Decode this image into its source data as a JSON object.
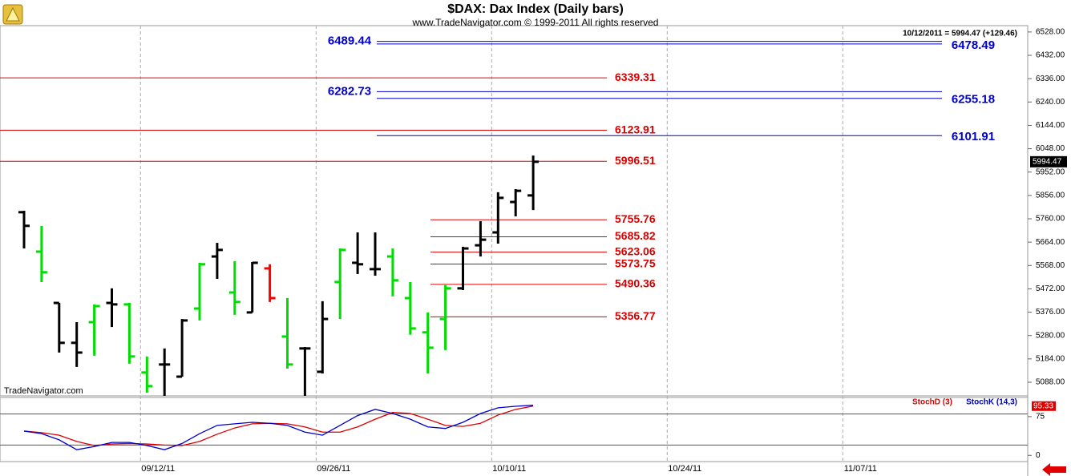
{
  "chart_data": [
    {
      "type": "ohlc",
      "title": "$DAX:  Dax Index  (Daily bars)",
      "subtitle": "www.TradeNavigator.com © 1999-2011 All rights reserved",
      "watermark": "TradeNavigator.com",
      "header_quote": "10/12/2011 = 5994.47 (+129.46)",
      "categories": [
        null,
        null,
        null,
        null,
        null,
        null,
        null,
        "09/12/11",
        null,
        null,
        null,
        null,
        null,
        null,
        null,
        null,
        null,
        "09/26/11",
        null,
        null,
        null,
        null,
        null,
        null,
        null,
        null,
        null,
        "10/10/11",
        null,
        null,
        null,
        null,
        null,
        null,
        null,
        null,
        null,
        "10/24/11",
        null,
        null,
        null,
        null,
        null,
        null,
        null,
        null,
        null,
        "11/07/11"
      ],
      "open": [
        5787,
        5625,
        5414,
        5250,
        5335,
        5414,
        5408,
        5128,
        5161,
        5111,
        5391,
        5605,
        5457,
        5375,
        5556,
        5276,
        5227,
        5131,
        5500,
        5579,
        5553,
        5605,
        5434,
        5293,
        5348,
        5474,
        5651,
        5704,
        5829,
        5856,
        null,
        null,
        null,
        null,
        null,
        null,
        null,
        null,
        null,
        null,
        null,
        null,
        null,
        null,
        null,
        null,
        null,
        null
      ],
      "high": [
        5793,
        5731,
        5414,
        5335,
        5408,
        5474,
        5414,
        5194,
        5227,
        5348,
        5579,
        5661,
        5586,
        5582,
        5573,
        5434,
        5233,
        5421,
        5638,
        5704,
        5704,
        5638,
        5500,
        5375,
        5487,
        5645,
        5750,
        5869,
        5882,
        6020,
        null,
        null,
        null,
        null,
        null,
        null,
        null,
        null,
        null,
        null,
        null,
        null,
        null,
        null,
        null,
        null,
        null,
        null
      ],
      "low": [
        5638,
        5500,
        5210,
        5151,
        5197,
        5315,
        5164,
        5045,
        5032,
        5111,
        5342,
        5513,
        5365,
        5375,
        5418,
        5144,
        5032,
        5124,
        5348,
        5533,
        5526,
        5441,
        5283,
        5124,
        5220,
        5467,
        5605,
        5658,
        5770,
        5796,
        null,
        null,
        null,
        null,
        null,
        null,
        null,
        null,
        null,
        null,
        null,
        null,
        null,
        null,
        null,
        null,
        null,
        null
      ],
      "close": [
        5731,
        5540,
        5250,
        5210,
        5401,
        5408,
        5194,
        5072,
        5161,
        5342,
        5573,
        5632,
        5418,
        5579,
        5434,
        5161,
        5227,
        5348,
        5632,
        5573,
        5553,
        5507,
        5309,
        5230,
        5474,
        5638,
        5674,
        5846,
        5875,
        5994.47,
        null,
        null,
        null,
        null,
        null,
        null,
        null,
        null,
        null,
        null,
        null,
        null,
        null,
        null,
        null,
        null,
        null,
        null
      ],
      "bar_colors": [
        "#000000",
        "#00dd00",
        "#000000",
        "#000000",
        "#00dd00",
        "#000000",
        "#00dd00",
        "#00dd00",
        "#000000",
        "#000000",
        "#00dd00",
        "#000000",
        "#00dd00",
        "#000000",
        "#ff0000",
        "#00dd00",
        "#000000",
        "#000000",
        "#00dd00",
        "#000000",
        "#000000",
        "#00dd00",
        "#00dd00",
        "#00dd00",
        "#00dd00",
        "#000000",
        "#000000",
        "#000000",
        "#000000",
        "#000000",
        null,
        null,
        null,
        null,
        null,
        null,
        null,
        null,
        null,
        null,
        null,
        null,
        null,
        null,
        null,
        null,
        null,
        null
      ],
      "levels": [
        {
          "value": 6489.44,
          "color": "#0000cc"
        },
        {
          "value": 6478.49,
          "color": "#0000cc"
        },
        {
          "value": 6339.31,
          "color": "#dd0000"
        },
        {
          "value": 6282.73,
          "color": "#0000cc"
        },
        {
          "value": 6255.18,
          "color": "#0000cc"
        },
        {
          "value": 6123.91,
          "color": "#dd0000"
        },
        {
          "value": 6101.91,
          "color": "#0000cc"
        },
        {
          "value": 5996.51,
          "color": "#dd0000"
        },
        {
          "value": 5755.76,
          "color": "#dd0000"
        },
        {
          "value": 5685.82,
          "color": "#dd0000"
        },
        {
          "value": 5623.06,
          "color": "#dd0000"
        },
        {
          "value": 5573.75,
          "color": "#dd0000"
        },
        {
          "value": 5490.36,
          "color": "#dd0000"
        },
        {
          "value": 5356.77,
          "color": "#dd0000"
        }
      ],
      "ylim": [
        5032,
        6554
      ],
      "yticks": [
        {
          "value": 6528,
          "label": "6528.00"
        },
        {
          "value": 6432,
          "label": "6432.00"
        },
        {
          "value": 6336,
          "label": "6336.00"
        },
        {
          "value": 6240,
          "label": "6240.00"
        },
        {
          "value": 6144,
          "label": "6144.00"
        },
        {
          "value": 6048,
          "label": "6048.00"
        },
        {
          "value": 5952,
          "label": "5952.00"
        },
        {
          "value": 5856,
          "label": "5856.00"
        },
        {
          "value": 5760,
          "label": "5760.00"
        },
        {
          "value": 5664,
          "label": "5664.00"
        },
        {
          "value": 5568,
          "label": "5568.00"
        },
        {
          "value": 5472,
          "label": "5472.00"
        },
        {
          "value": 5376,
          "label": "5376.00"
        },
        {
          "value": 5280,
          "label": "5280.00"
        },
        {
          "value": 5184,
          "label": "5184.00"
        },
        {
          "value": 5088,
          "label": "5088.00"
        }
      ],
      "grid": true
    },
    {
      "type": "line",
      "series": [
        {
          "name": "StochD (3)",
          "color": "#dd0000",
          "values": [
            47,
            44,
            39,
            27,
            19,
            22,
            23,
            22,
            20,
            19,
            27,
            41,
            53,
            61,
            62,
            61,
            55,
            45,
            45,
            55,
            70,
            83,
            81,
            70,
            58,
            56,
            62,
            78,
            89,
            95.33,
            null,
            null,
            null,
            null,
            null,
            null,
            null,
            null,
            null,
            null,
            null,
            null,
            null,
            null,
            null,
            null,
            null,
            null
          ]
        },
        {
          "name": "StochK (14,3)",
          "color": "#0000cc",
          "values": [
            47,
            42,
            30,
            11,
            17,
            25,
            25,
            19,
            11,
            23,
            42,
            58,
            61,
            64,
            62,
            58,
            45,
            39,
            58,
            77,
            89,
            81,
            70,
            55,
            52,
            64,
            81,
            92,
            95,
            97,
            null,
            null,
            null,
            null,
            null,
            null,
            null,
            null,
            null,
            null,
            null,
            null,
            null,
            null,
            null,
            null,
            null,
            null
          ]
        }
      ],
      "levels": [
        20,
        80
      ],
      "ylim": [
        -12,
        112
      ],
      "yticks": [
        0,
        75
      ]
    }
  ]
}
